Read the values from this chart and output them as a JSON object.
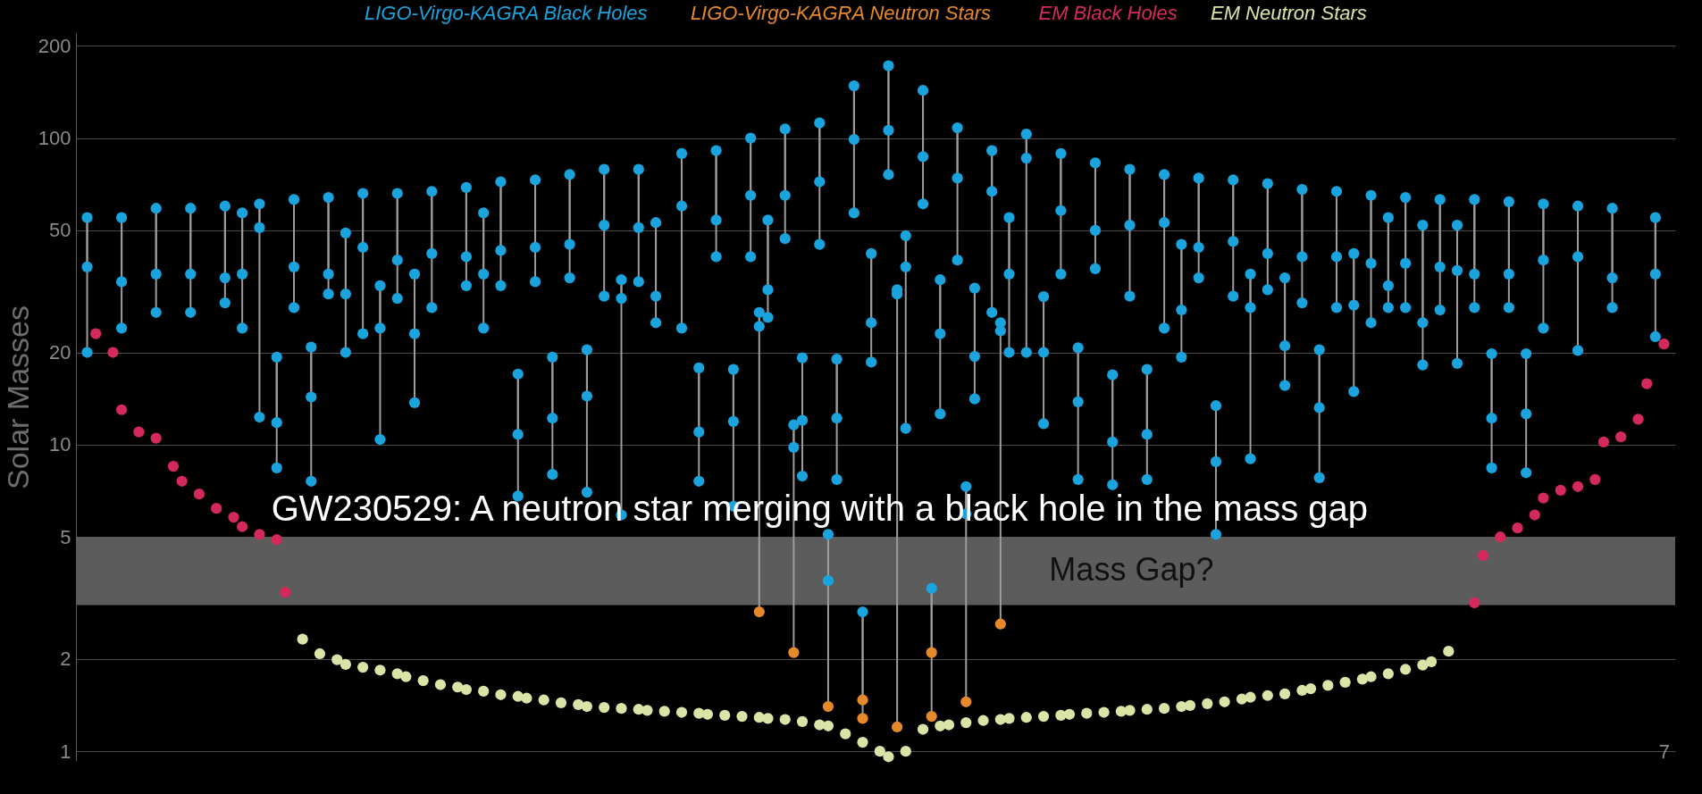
{
  "chart_data": {
    "type": "scatter",
    "ylabel": "Solar Masses",
    "log": true,
    "ylim": [
      0.93,
      220
    ],
    "yticks": [
      1,
      2,
      5,
      10,
      20,
      50,
      100,
      200
    ],
    "grid": "y",
    "tick_labels": "y",
    "marker": "circle",
    "legend": "top",
    "categories": [
      null,
      null,
      null,
      null,
      null,
      null,
      null,
      null,
      null,
      null,
      null,
      null,
      null,
      null,
      null,
      null,
      null,
      null,
      null,
      null,
      null,
      null,
      null,
      null,
      null,
      null,
      null,
      null,
      null,
      null,
      null,
      null,
      null,
      null,
      null,
      null,
      null,
      null,
      null,
      null,
      null,
      null,
      null,
      null,
      null,
      null,
      null,
      null,
      null,
      null,
      null,
      null,
      null,
      null,
      null,
      null,
      null,
      null,
      null,
      null,
      null,
      null,
      null,
      null,
      null,
      null,
      null,
      null,
      null,
      null,
      null,
      null,
      null,
      null,
      null,
      null,
      null,
      null,
      null,
      null,
      null,
      null,
      null,
      null,
      null,
      null,
      null,
      null,
      null,
      null,
      null,
      null,
      null,
      null,
      null,
      null,
      null,
      null,
      null,
      null,
      null,
      null,
      null,
      null,
      null,
      null,
      null,
      null,
      null,
      null,
      null,
      null,
      null,
      null,
      null,
      null,
      null,
      null,
      null,
      null,
      null,
      null,
      null,
      null,
      null,
      null,
      null,
      null,
      null,
      null,
      null,
      null,
      null,
      null,
      null,
      null,
      null,
      null,
      null,
      null,
      null,
      null,
      null,
      null,
      null,
      null,
      null,
      null,
      null,
      null,
      null,
      null,
      null,
      null,
      null,
      null,
      null,
      null,
      null,
      null,
      null,
      null,
      null,
      null,
      null,
      null,
      null,
      null,
      null,
      null,
      null,
      null,
      null,
      null,
      null,
      null,
      null,
      null,
      null,
      null,
      null,
      null,
      null,
      null,
      null,
      null
    ],
    "series": [
      {
        "name": "LIGO-Virgo-KAGRA Black Holes",
        "color": "#1aa3dc",
        "values": [
          null,
          55,
          null,
          null,
          null,
          55,
          null,
          null,
          null,
          59,
          null,
          null,
          null,
          59,
          null,
          null,
          null,
          60,
          null,
          57,
          null,
          61,
          null,
          19.3,
          null,
          63,
          null,
          20.8,
          null,
          64,
          null,
          49,
          null,
          66,
          null,
          33,
          null,
          66,
          null,
          36,
          null,
          67,
          null,
          null,
          null,
          69,
          null,
          57,
          null,
          72,
          null,
          17,
          null,
          73,
          null,
          19.3,
          null,
          76,
          null,
          20.4,
          null,
          79,
          null,
          34.5,
          null,
          79,
          null,
          53,
          null,
          null,
          89,
          null,
          17.8,
          null,
          91,
          null,
          17.6,
          null,
          100,
          27,
          54,
          null,
          107,
          11.6,
          19.2,
          null,
          112,
          5.1,
          19,
          null,
          148,
          2.85,
          42,
          null,
          172,
          32,
          48,
          null,
          143,
          3.4,
          34.5,
          null,
          108,
          7.3,
          32.4,
          null,
          91,
          25,
          55,
          null,
          103,
          null,
          30.4,
          null,
          89,
          null,
          20.7,
          null,
          83,
          null,
          16.9,
          null,
          79,
          null,
          17.6,
          null,
          76,
          null,
          45,
          null,
          74,
          null,
          13.4,
          null,
          73,
          null,
          36,
          null,
          71,
          null,
          35,
          null,
          68,
          null,
          20.4,
          null,
          67,
          null,
          42,
          null,
          65,
          null,
          55,
          null,
          64,
          null,
          52,
          null,
          63,
          null,
          52,
          null,
          63,
          null,
          19.8,
          null,
          62,
          null,
          19.8,
          null,
          61,
          null,
          null,
          null,
          60,
          null,
          null,
          null,
          59,
          null,
          null,
          null,
          null,
          55,
          null,
          null
        ]
      },
      {
        "color": "#1aa3dc",
        "values": [
          null,
          38,
          null,
          null,
          null,
          34,
          null,
          null,
          null,
          36,
          null,
          null,
          null,
          36,
          null,
          null,
          null,
          35,
          null,
          36,
          null,
          51,
          null,
          11.8,
          null,
          38,
          null,
          14.3,
          null,
          36,
          null,
          31,
          null,
          44,
          null,
          24,
          null,
          40,
          null,
          23,
          null,
          42,
          null,
          null,
          null,
          41,
          null,
          36,
          null,
          43,
          null,
          10.8,
          null,
          44,
          null,
          12.2,
          null,
          45,
          null,
          14.4,
          null,
          52,
          null,
          30,
          null,
          51,
          null,
          30.5,
          null,
          null,
          60,
          null,
          11,
          null,
          54,
          null,
          11.9,
          null,
          65,
          24.3,
          32,
          null,
          65,
          9.8,
          12,
          null,
          72,
          3.6,
          12.2,
          null,
          99,
          null,
          25,
          null,
          106,
          31,
          38,
          null,
          87,
          null,
          23,
          null,
          74,
          5.95,
          19.4,
          null,
          67,
          23.5,
          36,
          null,
          86,
          null,
          20,
          null,
          58,
          null,
          13.8,
          null,
          50,
          null,
          10.2,
          null,
          52,
          null,
          10.8,
          null,
          53,
          null,
          27.5,
          null,
          44,
          null,
          8.8,
          null,
          46,
          null,
          28,
          null,
          42,
          null,
          21,
          null,
          41,
          null,
          13.2,
          null,
          41,
          null,
          28.5,
          null,
          39,
          null,
          33,
          null,
          39,
          null,
          25,
          null,
          38,
          null,
          37,
          null,
          36,
          null,
          12.2,
          null,
          36,
          null,
          12.6,
          null,
          40,
          null,
          null,
          null,
          41,
          null,
          null,
          null,
          35,
          null,
          null,
          null,
          null,
          36,
          null,
          null
        ]
      },
      {
        "color": "#1aa3dc",
        "values": [
          null,
          20,
          null,
          null,
          null,
          24,
          null,
          null,
          null,
          27,
          null,
          null,
          null,
          27,
          null,
          null,
          null,
          29,
          null,
          24,
          null,
          12.3,
          null,
          8.4,
          null,
          28,
          null,
          7.6,
          null,
          31,
          null,
          20,
          null,
          23,
          null,
          10.4,
          null,
          30,
          null,
          13.7,
          null,
          28,
          null,
          null,
          null,
          33,
          null,
          24,
          null,
          33,
          null,
          6.8,
          null,
          34,
          null,
          8,
          null,
          35,
          null,
          7,
          null,
          30.5,
          null,
          5.9,
          null,
          34,
          null,
          25,
          null,
          null,
          24,
          null,
          7.6,
          null,
          41,
          null,
          6.3,
          null,
          41,
          null,
          26,
          null,
          47,
          null,
          7.9,
          null,
          45,
          null,
          7.7,
          null,
          57,
          null,
          18.6,
          null,
          76,
          null,
          11.3,
          null,
          61,
          null,
          12.6,
          null,
          40,
          null,
          14.1,
          null,
          27,
          null,
          20,
          null,
          20,
          null,
          11.7,
          null,
          36,
          null,
          7.7,
          null,
          37.5,
          null,
          7.4,
          null,
          30.5,
          null,
          7.7,
          null,
          24,
          null,
          19.3,
          null,
          35,
          null,
          5.1,
          null,
          30.5,
          null,
          9,
          null,
          32,
          null,
          15.6,
          null,
          29,
          null,
          7.8,
          null,
          28,
          null,
          14.9,
          null,
          25,
          null,
          28,
          null,
          28,
          null,
          18.2,
          null,
          27.5,
          null,
          18.4,
          null,
          28,
          null,
          8.4,
          null,
          28,
          null,
          8.1,
          null,
          24,
          null,
          null,
          null,
          20.3,
          null,
          null,
          null,
          28,
          null,
          null,
          null,
          null,
          22.5,
          null,
          null
        ]
      },
      {
        "name": "LIGO-Virgo-KAGRA Neutron Stars",
        "color": "#e6892b",
        "values": [
          null,
          null,
          null,
          null,
          null,
          null,
          null,
          null,
          null,
          null,
          null,
          null,
          null,
          null,
          null,
          null,
          null,
          null,
          null,
          null,
          null,
          null,
          null,
          null,
          null,
          null,
          null,
          null,
          null,
          null,
          null,
          null,
          null,
          null,
          null,
          null,
          null,
          null,
          null,
          null,
          null,
          null,
          null,
          null,
          null,
          null,
          null,
          null,
          null,
          null,
          null,
          null,
          null,
          null,
          null,
          null,
          null,
          null,
          null,
          null,
          null,
          null,
          null,
          null,
          null,
          null,
          null,
          null,
          null,
          null,
          null,
          null,
          null,
          null,
          null,
          null,
          null,
          null,
          null,
          2.85,
          null,
          null,
          null,
          2.1,
          null,
          null,
          null,
          1.4,
          null,
          null,
          null,
          1.47,
          null,
          null,
          null,
          1.2,
          null,
          null,
          null,
          2.1,
          null,
          null,
          null,
          1.45,
          null,
          null,
          null,
          2.6,
          null,
          null,
          null,
          null,
          null,
          null,
          null,
          null,
          null,
          null,
          null,
          null,
          null,
          null,
          null,
          null,
          null,
          null,
          null,
          null,
          null,
          null,
          null,
          null,
          null,
          null,
          null,
          null,
          null,
          null,
          null,
          null,
          null,
          null,
          null,
          null,
          null,
          null,
          null,
          null,
          null,
          null,
          null,
          null,
          null,
          null,
          null,
          null,
          null,
          null,
          null,
          null,
          null,
          null,
          null,
          null,
          null,
          null,
          null,
          null,
          null,
          null,
          null,
          null,
          null,
          null,
          null,
          null,
          null,
          null,
          null,
          null,
          null,
          null,
          null,
          null,
          null,
          null
        ]
      },
      {
        "color": "#e6892b",
        "values": [
          null,
          null,
          null,
          null,
          null,
          null,
          null,
          null,
          null,
          null,
          null,
          null,
          null,
          null,
          null,
          null,
          null,
          null,
          null,
          null,
          null,
          null,
          null,
          null,
          null,
          null,
          null,
          null,
          null,
          null,
          null,
          null,
          null,
          null,
          null,
          null,
          null,
          null,
          null,
          null,
          null,
          null,
          null,
          null,
          null,
          null,
          null,
          null,
          null,
          null,
          null,
          null,
          null,
          null,
          null,
          null,
          null,
          null,
          null,
          null,
          null,
          null,
          null,
          null,
          null,
          null,
          null,
          null,
          null,
          null,
          null,
          null,
          null,
          null,
          null,
          null,
          null,
          null,
          null,
          null,
          null,
          null,
          null,
          null,
          null,
          null,
          null,
          null,
          null,
          null,
          null,
          1.28,
          null,
          null,
          null,
          null,
          null,
          null,
          null,
          1.3,
          null,
          null,
          null,
          null,
          null,
          null,
          null,
          null,
          null,
          null,
          null,
          null,
          null,
          null,
          null,
          null,
          null,
          null,
          null,
          null,
          null,
          null,
          null,
          null,
          null,
          null,
          null,
          null,
          null,
          null,
          null,
          null,
          null,
          null,
          null,
          null,
          null,
          null,
          null,
          null,
          null,
          null,
          null,
          null,
          null,
          null,
          null,
          null,
          null,
          null,
          null,
          null,
          null,
          null,
          null,
          null,
          null,
          null,
          null,
          null,
          null,
          null,
          null,
          null,
          null,
          null,
          null,
          null,
          null,
          null,
          null,
          null,
          null,
          null,
          null,
          null,
          null,
          null,
          null,
          null,
          null,
          null,
          null,
          null,
          null,
          null
        ]
      },
      {
        "name": "EM Black Holes",
        "color": "#d42a5b",
        "values": [
          null,
          null,
          23,
          null,
          20,
          13,
          null,
          11,
          null,
          10.5,
          null,
          8.5,
          7.6,
          null,
          6.9,
          null,
          6.2,
          null,
          5.8,
          5.4,
          null,
          5.1,
          null,
          4.9,
          3.3,
          null,
          null,
          null,
          null,
          null,
          null,
          null,
          null,
          null,
          null,
          null,
          null,
          null,
          null,
          null,
          null,
          null,
          null,
          null,
          null,
          null,
          null,
          null,
          null,
          null,
          null,
          null,
          null,
          null,
          null,
          null,
          null,
          null,
          null,
          null,
          null,
          null,
          null,
          null,
          null,
          null,
          null,
          null,
          null,
          null,
          null,
          null,
          null,
          null,
          null,
          null,
          null,
          null,
          null,
          null,
          null,
          null,
          null,
          null,
          null,
          null,
          null,
          null,
          null,
          null,
          null,
          null,
          null,
          null,
          null,
          null,
          null,
          null,
          null,
          null,
          null,
          null,
          null,
          null,
          null,
          null,
          null,
          null,
          null,
          null,
          null,
          null,
          null,
          null,
          null,
          null,
          null,
          null,
          null,
          null,
          null,
          null,
          null,
          null,
          null,
          null,
          null,
          null,
          null,
          null,
          null,
          null,
          null,
          null,
          null,
          null,
          null,
          null,
          null,
          null,
          null,
          null,
          null,
          null,
          null,
          null,
          null,
          null,
          null,
          null,
          null,
          null,
          null,
          null,
          null,
          null,
          null,
          null,
          null,
          null,
          null,
          null,
          3.05,
          4.35,
          null,
          5.0,
          null,
          5.35,
          null,
          5.9,
          6.7,
          null,
          7.1,
          null,
          7.3,
          null,
          7.7,
          10.2,
          null,
          10.6,
          null,
          12.1,
          15.8,
          null,
          21.3,
          null
        ]
      },
      {
        "name": "EM Neutron Stars",
        "color": "#d9e4a6",
        "values": [
          null,
          null,
          null,
          null,
          null,
          null,
          null,
          null,
          null,
          null,
          null,
          null,
          null,
          null,
          null,
          null,
          null,
          null,
          null,
          null,
          null,
          null,
          null,
          null,
          null,
          null,
          2.32,
          null,
          2.08,
          null,
          1.99,
          1.92,
          null,
          1.88,
          null,
          1.84,
          null,
          1.79,
          1.75,
          null,
          1.7,
          null,
          1.65,
          null,
          1.62,
          1.59,
          null,
          1.57,
          null,
          1.53,
          null,
          1.51,
          1.49,
          null,
          1.47,
          null,
          1.44,
          null,
          1.42,
          1.4,
          null,
          1.39,
          null,
          1.38,
          null,
          1.37,
          1.36,
          null,
          1.35,
          null,
          1.34,
          null,
          1.33,
          1.32,
          null,
          1.31,
          null,
          1.3,
          null,
          1.29,
          1.28,
          null,
          1.27,
          null,
          1.25,
          null,
          1.22,
          1.21,
          null,
          1.14,
          null,
          1.07,
          null,
          1.0,
          0.96,
          null,
          1.0,
          null,
          1.18,
          null,
          1.21,
          1.22,
          null,
          1.24,
          null,
          1.26,
          null,
          1.27,
          1.28,
          null,
          1.29,
          null,
          1.3,
          null,
          1.31,
          1.32,
          null,
          1.33,
          null,
          1.34,
          null,
          1.35,
          1.36,
          null,
          1.37,
          null,
          1.38,
          null,
          1.4,
          1.41,
          null,
          1.43,
          null,
          1.45,
          null,
          1.48,
          1.5,
          null,
          1.52,
          null,
          1.54,
          null,
          1.58,
          1.6,
          null,
          1.64,
          null,
          1.68,
          null,
          1.72,
          1.75,
          null,
          1.79,
          null,
          1.85,
          null,
          1.91,
          1.96,
          null,
          2.12,
          null,
          null,
          null,
          null,
          null,
          null,
          null,
          null,
          null,
          null,
          null,
          null,
          null,
          null,
          null,
          null,
          null,
          null,
          null,
          null,
          null,
          null,
          null,
          null,
          null,
          null
        ]
      }
    ],
    "bands": [
      {
        "axis": "y",
        "from": 3,
        "to": 5,
        "label": "Mass Gap?",
        "color": "#5c5c5c"
      }
    ],
    "annotations": [
      "GW230529: A neutron star merging with a black hole in the mass gap",
      "7"
    ]
  }
}
